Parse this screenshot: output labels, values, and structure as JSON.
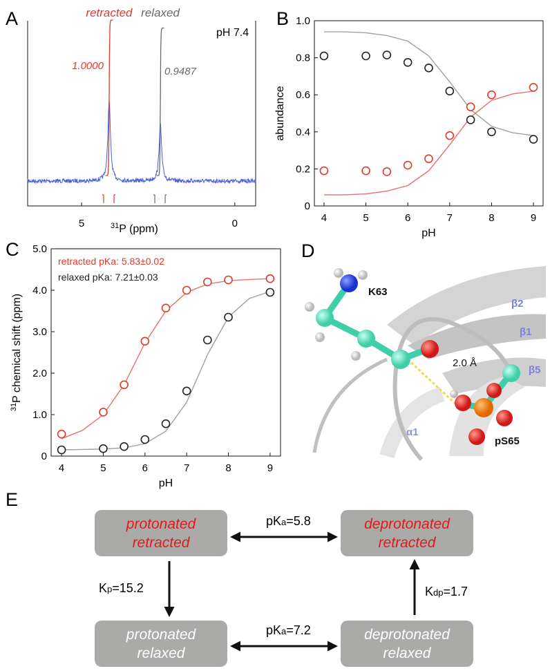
{
  "panel_labels": [
    "A",
    "B",
    "C",
    "D",
    "E"
  ],
  "chart_data": [
    {
      "type": "nmr",
      "condition": "pH 7.4",
      "xlabel": {
        "sup": "31",
        "text": "P (ppm)"
      },
      "xlim": [
        6.76,
        -0.68
      ],
      "xticks": [
        5,
        0
      ],
      "peaks": [
        {
          "name": "retracted",
          "color": "#e0392b",
          "position": 4.1,
          "height": 1.0,
          "integral": {
            "value": 1.0,
            "label": "1.0000"
          }
        },
        {
          "name": "relaxed",
          "color": "#666a6a",
          "position": 2.43,
          "height": 0.7,
          "integral": {
            "value": 0.9487,
            "label": "0.9487"
          }
        }
      ],
      "spectrum_color": "#4a5fd8"
    },
    {
      "type": "scatter",
      "xlabel": "pH",
      "ylabel": "abundance",
      "xlim": [
        3.77,
        9.23
      ],
      "ylim": [
        0,
        1
      ],
      "xticks": [
        4,
        5,
        6,
        7,
        8,
        9
      ],
      "yticks": [
        0,
        0.2,
        0.4,
        0.6,
        0.8,
        {
          "value": 1.0,
          "label": "1.0"
        }
      ],
      "series": [
        {
          "color": "#222222",
          "line_color": "#a0a0a0",
          "x": [
            4,
            5,
            5.5,
            6,
            6.5,
            7,
            7.5,
            8,
            9
          ],
          "values": [
            0.81,
            0.81,
            0.815,
            0.775,
            0.745,
            0.62,
            0.465,
            0.4,
            0.36
          ],
          "fit": {
            "x": [
              4,
              4.5,
              5,
              5.5,
              6,
              6.5,
              7,
              7.5,
              8,
              8.5,
              9
            ],
            "values": [
              0.94,
              0.94,
              0.935,
              0.92,
              0.89,
              0.81,
              0.67,
              0.52,
              0.43,
              0.395,
              0.38
            ]
          }
        },
        {
          "color": "#e0392b",
          "line_color": "#e8706a",
          "x": [
            4,
            5,
            5.5,
            6,
            6.5,
            7,
            7.5,
            8,
            9
          ],
          "values": [
            0.19,
            0.19,
            0.185,
            0.22,
            0.255,
            0.38,
            0.535,
            0.6,
            0.64
          ],
          "fit": {
            "x": [
              4,
              4.5,
              5,
              5.5,
              6,
              6.5,
              7,
              7.5,
              8,
              8.5,
              9
            ],
            "values": [
              0.06,
              0.06,
              0.065,
              0.08,
              0.11,
              0.19,
              0.33,
              0.48,
              0.57,
              0.605,
              0.62
            ]
          }
        }
      ]
    },
    {
      "type": "scatter",
      "xlabel": "pH",
      "ylabel": {
        "sup": "31",
        "text": "P chemical shift (ppm)"
      },
      "xlim": [
        3.75,
        9.25
      ],
      "ylim": [
        0,
        5
      ],
      "xticks": [
        4,
        5,
        6,
        7,
        8,
        9
      ],
      "yticks": [
        0,
        {
          "value": 1.0,
          "label": "1.0"
        },
        {
          "value": 2.0,
          "label": "2.0"
        },
        {
          "value": 3.0,
          "label": "3.0"
        },
        {
          "value": 4.0,
          "label": "4.0"
        },
        {
          "value": 5.0,
          "label": "5.0"
        }
      ],
      "series": [
        {
          "name": "retracted pKa: 5.83±0.02",
          "color": "#e0392b",
          "line_color": "#e8706a",
          "x": [
            4,
            5,
            5.5,
            6,
            6.5,
            7,
            7.5,
            8,
            9
          ],
          "values": [
            0.53,
            1.06,
            1.72,
            2.77,
            3.57,
            4.0,
            4.2,
            4.25,
            4.28
          ],
          "fit": {
            "x": [
              4,
              4.5,
              5,
              5.5,
              6,
              6.5,
              7,
              7.5,
              8,
              8.5,
              9
            ],
            "values": [
              0.42,
              0.62,
              1.0,
              1.72,
              2.73,
              3.5,
              3.95,
              4.15,
              4.23,
              4.26,
              4.28
            ]
          }
        },
        {
          "name": "relaxed pKa: 7.21±0.03",
          "color": "#222222",
          "line_color": "#a0a0a0",
          "x": [
            4,
            5,
            5.5,
            6,
            6.5,
            7,
            7.5,
            8,
            9
          ],
          "values": [
            0.15,
            0.18,
            0.23,
            0.4,
            0.78,
            1.57,
            2.8,
            3.35,
            3.95
          ],
          "fit": {
            "x": [
              4,
              4.5,
              5,
              5.5,
              6,
              6.5,
              7,
              7.5,
              8,
              8.5,
              9
            ],
            "values": [
              0.15,
              0.16,
              0.17,
              0.2,
              0.3,
              0.6,
              1.3,
              2.45,
              3.35,
              3.8,
              3.97
            ]
          }
        }
      ]
    }
  ],
  "structure": {
    "labels": [
      "K63",
      "β2",
      "β1",
      "β5",
      "2.0 Å",
      "α1",
      "pS65"
    ]
  },
  "scheme": {
    "boxes": [
      {
        "lines": [
          "protonated",
          "retracted"
        ]
      },
      {
        "lines": [
          "deprotonated",
          "retracted"
        ]
      },
      {
        "lines": [
          "protonated",
          "relaxed"
        ]
      },
      {
        "lines": [
          "deprotonated",
          "relaxed"
        ]
      }
    ],
    "arrows": [
      {
        "main": "pK",
        "sub": "a",
        "rest": "=5.8"
      },
      {
        "main": "pK",
        "sub": "a",
        "rest": "=7.2"
      },
      {
        "main": "K",
        "sub": "p",
        "rest": "=15.2"
      },
      {
        "main": "K",
        "sub": "dp",
        "rest": "=1.7"
      }
    ]
  }
}
